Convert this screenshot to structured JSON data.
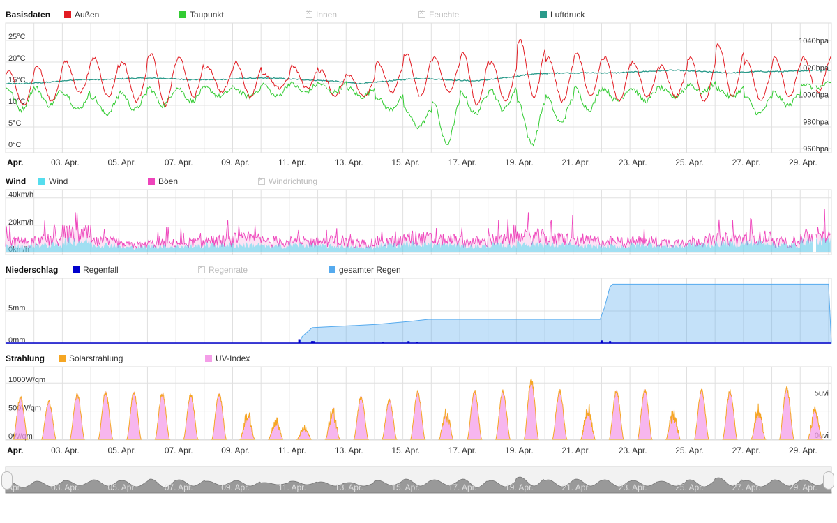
{
  "colors": {
    "aussen": "#e21b22",
    "taupunkt": "#33cc33",
    "luftdruck": "#2a9a8a",
    "wind": "#55ddee",
    "boeen": "#ee44bb",
    "regenfall": "#0000cc",
    "gesamter_regen": "#55aaee",
    "solar": "#f5a623",
    "uv": "#f49ee8",
    "grid": "#e0e0e0",
    "navigator": "#999999"
  },
  "legends": {
    "basis": {
      "title": "Basisdaten",
      "items": [
        "Außen",
        "Taupunkt",
        "Innen",
        "Feuchte",
        "Luftdruck"
      ]
    },
    "wind": {
      "title": "Wind",
      "items": [
        "Wind",
        "Böen",
        "Windrichtung"
      ]
    },
    "rain": {
      "title": "Niederschlag",
      "items": [
        "Regenfall",
        "Regenrate",
        "gesamter Regen"
      ]
    },
    "solar": {
      "title": "Strahlung",
      "items": [
        "Solarstrahlung",
        "UV-Index"
      ]
    }
  },
  "chart_data": [
    {
      "type": "line",
      "title": "Basisdaten",
      "x": [
        "Apr.",
        "03. Apr.",
        "05. Apr.",
        "07. Apr.",
        "09. Apr.",
        "11. Apr.",
        "13. Apr.",
        "15. Apr.",
        "17. Apr.",
        "19. Apr.",
        "21. Apr.",
        "23. Apr.",
        "25. Apr.",
        "27. Apr.",
        "29. Apr."
      ],
      "y_left_ticks": [
        "0°C",
        "5°C",
        "10°C",
        "15°C",
        "20°C",
        "25°C"
      ],
      "y_right_ticks": [
        "960hpa",
        "980hpa",
        "1000hpa",
        "1020hpa",
        "1040hpa"
      ],
      "y_left_range": [
        0,
        25
      ],
      "y_right_range": [
        960,
        1040
      ],
      "series": [
        {
          "name": "Außen",
          "axis": "left",
          "daily_min": [
            10,
            11,
            13,
            12,
            11,
            10,
            12,
            13,
            12,
            14,
            14,
            12,
            12,
            13,
            12,
            13,
            10,
            11,
            12,
            11,
            12,
            11,
            12,
            12,
            11,
            12,
            11,
            12,
            13
          ],
          "daily_max": [
            18,
            19,
            20,
            21,
            20,
            22,
            21,
            19,
            20,
            17,
            19,
            18,
            17,
            20,
            22,
            21,
            22,
            20,
            25,
            21,
            22,
            21,
            20,
            19,
            21,
            24,
            20,
            21,
            21
          ]
        },
        {
          "name": "Taupunkt",
          "axis": "left",
          "daily_min": [
            9,
            10,
            9,
            8,
            9,
            10,
            11,
            12,
            12,
            12,
            13,
            13,
            12,
            9,
            5,
            1,
            8,
            9,
            1,
            6,
            9,
            11,
            11,
            12,
            13,
            12,
            8,
            10,
            14
          ],
          "daily_max": [
            14,
            14,
            13,
            12,
            13,
            14,
            14,
            14,
            14,
            15,
            15,
            15,
            14,
            12,
            9,
            11,
            13,
            14,
            11,
            12,
            14,
            14,
            14,
            14,
            15,
            14,
            12,
            13,
            15
          ]
        },
        {
          "name": "Luftdruck",
          "axis": "right",
          "daily_mean": [
            1008,
            1009,
            1011,
            1011,
            1012,
            1012,
            1011,
            1011,
            1012,
            1012,
            1011,
            1010,
            1008,
            1010,
            1012,
            1011,
            1010,
            1012,
            1015,
            1016,
            1016,
            1016,
            1017,
            1018,
            1017,
            1016,
            1017,
            1017,
            1018
          ]
        }
      ]
    },
    {
      "type": "area",
      "title": "Wind",
      "y_ticks": [
        "0km/h",
        "20km/h",
        "40km/h"
      ],
      "y_range": [
        0,
        46
      ],
      "series": [
        {
          "name": "Wind",
          "daily_mean": [
            5,
            6,
            9,
            6,
            4,
            5,
            5,
            6,
            6,
            5,
            6,
            5,
            4,
            6,
            7,
            6,
            5,
            6,
            7,
            6,
            5,
            5,
            6,
            5,
            6,
            7,
            8,
            6,
            9
          ]
        },
        {
          "name": "Böen",
          "daily_max": [
            26,
            30,
            44,
            25,
            18,
            22,
            24,
            28,
            32,
            27,
            26,
            28,
            22,
            27,
            34,
            30,
            26,
            31,
            38,
            33,
            28,
            26,
            27,
            24,
            28,
            32,
            36,
            24,
            37
          ]
        }
      ]
    },
    {
      "type": "area",
      "title": "Niederschlag",
      "y_ticks": [
        "0mm",
        "5mm"
      ],
      "y_range": [
        0,
        10
      ],
      "series": [
        {
          "name": "gesamter Regen",
          "steps": [
            [
              11.35,
              0
            ],
            [
              11.45,
              1
            ],
            [
              11.6,
              1.6
            ],
            [
              11.8,
              2.4
            ],
            [
              14.05,
              2.9
            ],
            [
              15.3,
              3.4
            ],
            [
              15.9,
              3.7
            ],
            [
              21.95,
              3.7
            ],
            [
              22.1,
              5.5
            ],
            [
              22.3,
              8.8
            ],
            [
              22.4,
              9.2
            ],
            [
              30,
              9.2
            ]
          ]
        },
        {
          "name": "Regenfall",
          "bars": [
            [
              11.35,
              0.6
            ],
            [
              11.8,
              0.3
            ],
            [
              11.85,
              0.3
            ],
            [
              14.3,
              0.2
            ],
            [
              15.2,
              0.3
            ],
            [
              15.5,
              0.2
            ],
            [
              22.0,
              0.4
            ],
            [
              22.3,
              0.3
            ]
          ]
        }
      ]
    },
    {
      "type": "area",
      "title": "Strahlung",
      "y_left_ticks": [
        "0W/qm",
        "500W/qm",
        "1000W/qm"
      ],
      "y_right_ticks": [
        "0uvi",
        "5uvi"
      ],
      "y_left_range": [
        0,
        1300
      ],
      "y_right_range": [
        0,
        8.7
      ],
      "series": [
        {
          "name": "Solarstrahlung",
          "daily_peak": [
            780,
            700,
            830,
            870,
            860,
            850,
            820,
            850,
            560,
            420,
            250,
            600,
            780,
            720,
            870,
            560,
            890,
            890,
            1090,
            900,
            660,
            900,
            900,
            560,
            900,
            890,
            650,
            940,
            600
          ]
        },
        {
          "name": "UV-Index",
          "daily_peak": [
            5.0,
            4.5,
            5.5,
            5.8,
            5.7,
            5.6,
            5.4,
            5.6,
            3.7,
            2.8,
            1.6,
            4.0,
            5.2,
            4.8,
            5.8,
            3.7,
            5.9,
            5.9,
            7.0,
            6.0,
            4.4,
            6.0,
            6.0,
            3.7,
            6.0,
            5.9,
            4.3,
            6.2,
            4.0
          ]
        }
      ]
    }
  ]
}
